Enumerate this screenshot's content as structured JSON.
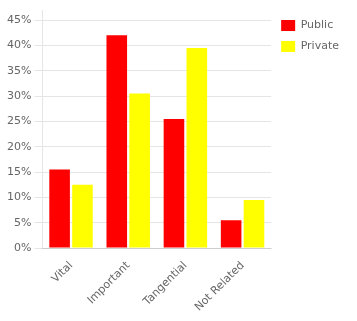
{
  "chart_data": {
    "type": "bar",
    "categories": [
      "Vital",
      "Important",
      "Tangential",
      "Not Related"
    ],
    "series": [
      {
        "name": "Public",
        "color": "#FF0000",
        "values": [
          0.155,
          0.42,
          0.255,
          0.055
        ]
      },
      {
        "name": "Private",
        "color": "#FFFF00",
        "values": [
          0.125,
          0.305,
          0.395,
          0.095
        ]
      }
    ],
    "ylim": [
      0,
      0.47
    ],
    "yticks": [
      {
        "value": 0.0,
        "label": "0%"
      },
      {
        "value": 0.05,
        "label": "5%"
      },
      {
        "value": 0.1,
        "label": "10%"
      },
      {
        "value": 0.15,
        "label": "15%"
      },
      {
        "value": 0.2,
        "label": "20%"
      },
      {
        "value": 0.25,
        "label": "25%"
      },
      {
        "value": 0.3,
        "label": "30%"
      },
      {
        "value": 0.35,
        "label": "35%"
      },
      {
        "value": 0.4,
        "label": "40%"
      },
      {
        "value": 0.45,
        "label": "45%"
      }
    ],
    "grid": true,
    "legend": "right"
  }
}
